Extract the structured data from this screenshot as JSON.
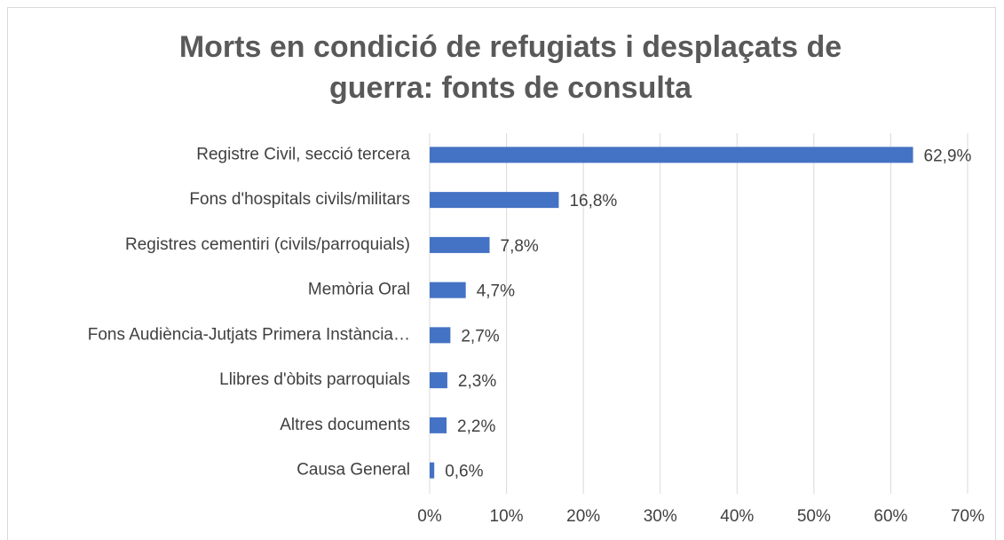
{
  "chart_data": {
    "type": "bar",
    "orientation": "horizontal",
    "title": "Morts en condició de refugiats i desplaçats de guerra: fonts de consulta",
    "categories": [
      "Registre Civil, secció tercera",
      "Fons d'hospitals civils/militars",
      "Registres cementiri (civils/parroquials)",
      "Memòria Oral",
      "Fons Audiència-Jutjats Primera Instància…",
      "Llibres d'òbits parroquials",
      "Altres documents",
      "Causa General"
    ],
    "values": [
      62.9,
      16.8,
      7.8,
      4.7,
      2.7,
      2.3,
      2.2,
      0.6
    ],
    "value_labels": [
      "62,9%",
      "16,8%",
      "7,8%",
      "4,7%",
      "2,7%",
      "2,3%",
      "2,2%",
      "0,6%"
    ],
    "color": "#4472c4",
    "xlim": [
      0,
      70
    ],
    "xticks": [
      {
        "value": 0,
        "label": "0%"
      },
      {
        "value": 10,
        "label": "10%"
      },
      {
        "value": 20,
        "label": "20%"
      },
      {
        "value": 30,
        "label": "30%"
      },
      {
        "value": 40,
        "label": "40%"
      },
      {
        "value": 50,
        "label": "50%"
      },
      {
        "value": 60,
        "label": "60%"
      },
      {
        "value": 70,
        "label": "70%"
      }
    ],
    "grid": true
  }
}
